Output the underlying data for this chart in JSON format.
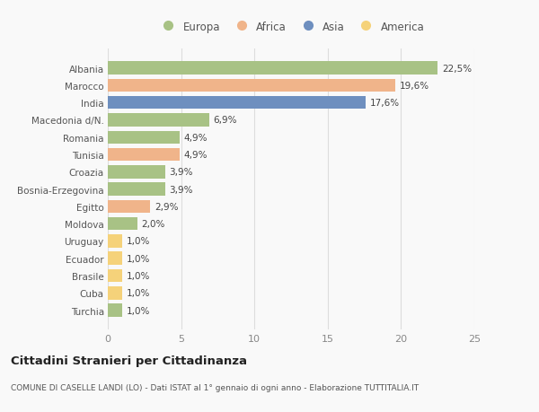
{
  "categories": [
    "Albania",
    "Marocco",
    "India",
    "Macedonia d/N.",
    "Romania",
    "Tunisia",
    "Croazia",
    "Bosnia-Erzegovina",
    "Egitto",
    "Moldova",
    "Uruguay",
    "Ecuador",
    "Brasile",
    "Cuba",
    "Turchia"
  ],
  "values": [
    22.5,
    19.6,
    17.6,
    6.9,
    4.9,
    4.9,
    3.9,
    3.9,
    2.9,
    2.0,
    1.0,
    1.0,
    1.0,
    1.0,
    1.0
  ],
  "labels": [
    "22,5%",
    "19,6%",
    "17,6%",
    "6,9%",
    "4,9%",
    "4,9%",
    "3,9%",
    "3,9%",
    "2,9%",
    "2,0%",
    "1,0%",
    "1,0%",
    "1,0%",
    "1,0%",
    "1,0%"
  ],
  "continents": [
    "Europa",
    "Africa",
    "Asia",
    "Europa",
    "Europa",
    "Africa",
    "Europa",
    "Europa",
    "Africa",
    "Europa",
    "America",
    "America",
    "America",
    "America",
    "Europa"
  ],
  "colors": {
    "Europa": "#a8c285",
    "Africa": "#f0b48a",
    "Asia": "#6e8fbf",
    "America": "#f5d27a"
  },
  "legend_order": [
    "Europa",
    "Africa",
    "Asia",
    "America"
  ],
  "title": "Cittadini Stranieri per Cittadinanza",
  "subtitle": "COMUNE DI CASELLE LANDI (LO) - Dati ISTAT al 1° gennaio di ogni anno - Elaborazione TUTTITALIA.IT",
  "xlim": [
    0,
    25
  ],
  "xticks": [
    0,
    5,
    10,
    15,
    20,
    25
  ],
  "background_color": "#f9f9f9",
  "grid_color": "#dddddd",
  "bar_height": 0.75
}
